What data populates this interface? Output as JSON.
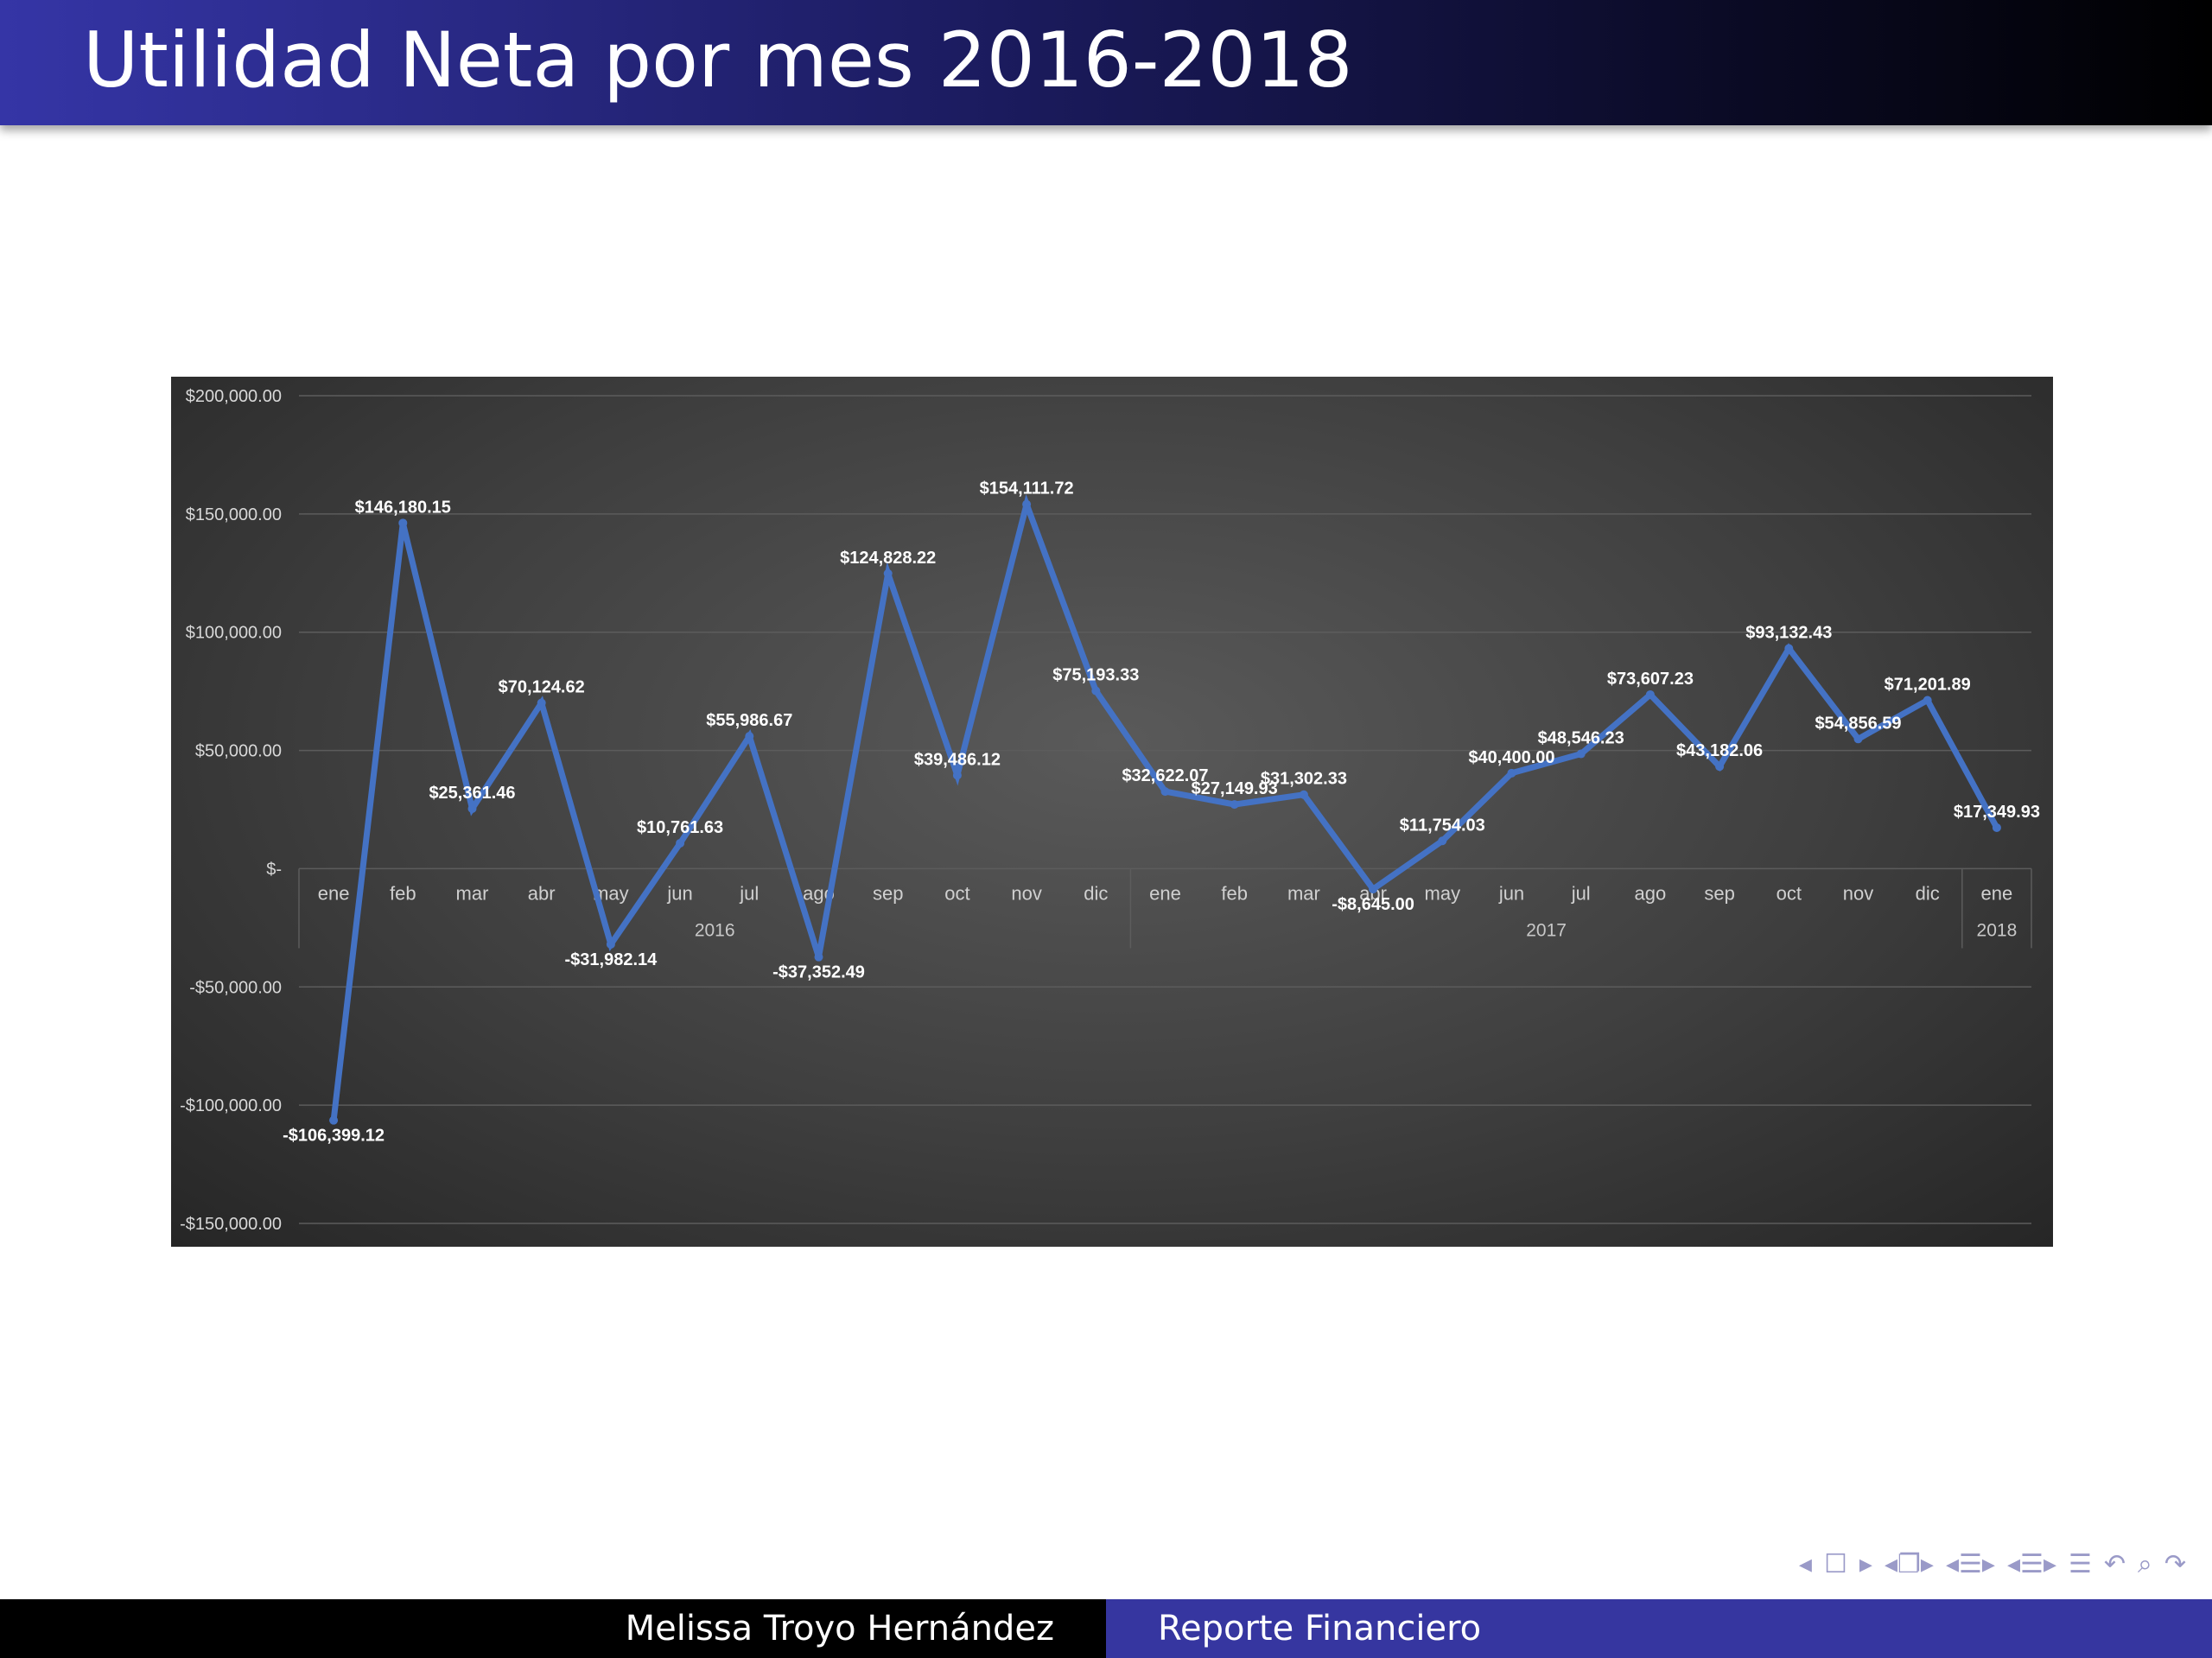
{
  "slide": {
    "title": "Utilidad Neta por mes 2016-2018",
    "footer_author": "Melissa Troyo Hernández",
    "footer_title": "Reporte Financiero"
  },
  "nav_icons": [
    "nav-prev-icon",
    "frame-icon",
    "nav-next-icon",
    "subsection-icon",
    "section-icon",
    "align-icon",
    "search-icon",
    "back-icon"
  ],
  "colors": {
    "title_bar_start": "#3535a6",
    "title_bar_end": "#000000",
    "footer_right": "#3636a0",
    "series_line": "#4472c4"
  },
  "chart_data": {
    "type": "line",
    "ylim": [
      -150000,
      200000
    ],
    "yticks": [
      200000,
      150000,
      100000,
      50000,
      0,
      -50000,
      -100000,
      -150000
    ],
    "ytick_labels": [
      "$200,000.00",
      "$150,000.00",
      "$100,000.00",
      "$50,000.00",
      "$-",
      "-$50,000.00",
      "-$100,000.00",
      "-$150,000.00"
    ],
    "grid": true,
    "legend": "none",
    "categories": [
      "ene",
      "feb",
      "mar",
      "abr",
      "may",
      "jun",
      "jul",
      "ago",
      "sep",
      "oct",
      "nov",
      "dic",
      "ene",
      "feb",
      "mar",
      "abr",
      "may",
      "jun",
      "jul",
      "ago",
      "sep",
      "oct",
      "nov",
      "dic",
      "ene"
    ],
    "year_groups": [
      {
        "label": "2016",
        "start": 0,
        "end": 11
      },
      {
        "label": "2017",
        "start": 12,
        "end": 23
      },
      {
        "label": "2018",
        "start": 24,
        "end": 24
      }
    ],
    "series": [
      {
        "values": [
          -106399.12,
          146180.15,
          25361.46,
          70124.62,
          -31982.14,
          10761.63,
          55986.67,
          -37352.49,
          124828.22,
          39486.12,
          154111.72,
          75193.33,
          32622.07,
          27149.93,
          31302.33,
          -8645.0,
          11754.03,
          40400.0,
          48546.23,
          73607.23,
          43182.06,
          93132.43,
          54856.59,
          71201.89,
          17349.93
        ],
        "labels": [
          "-$106,399.12",
          "$146,180.15",
          "$25,361.46",
          "$70,124.62",
          "-$31,982.14",
          "$10,761.63",
          "$55,986.67",
          "-$37,352.49",
          "$124,828.22",
          "$39,486.12",
          "$154,111.72",
          "$75,193.33",
          "$32,622.07",
          "$27,149.93",
          "$31,302.33",
          "-$8,645.00",
          "$11,754.03",
          "$40,400.00",
          "$48,546.23",
          "$73,607.23",
          "$43,182.06",
          "$93,132.43",
          "$54,856.59",
          "$71,201.89",
          "$17,349.93"
        ]
      }
    ]
  }
}
